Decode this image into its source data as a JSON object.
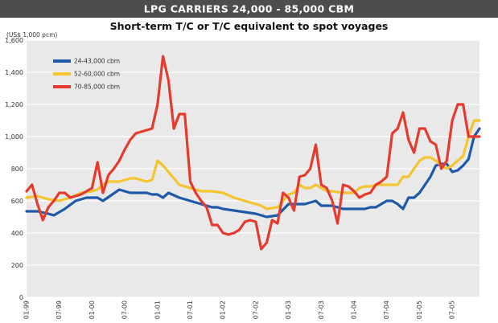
{
  "chart_data": {
    "type": "line",
    "title": "LPG CARRIERS 24,000 - 85,000 CBM",
    "subtitle": "Short-term T/C or T/C equivalent to spot voyages",
    "ylabel": "(US$ 1,000 pcm)",
    "xlabel": "",
    "ylim": [
      0,
      1600
    ],
    "yticks": [
      "0",
      "200",
      "400",
      "600",
      "800",
      "1,000",
      "1,200",
      "1,400",
      "1,600"
    ],
    "yticks_values": [
      0,
      200,
      400,
      600,
      800,
      1000,
      1200,
      1400,
      1600
    ],
    "xlim": [
      0,
      83
    ],
    "xticks": [
      "01-99",
      "07-99",
      "01-00",
      "07-00",
      "01-01",
      "07-01",
      "01-02",
      "07-02",
      "01-03",
      "07-03",
      "01-04",
      "07-04",
      "01-05",
      "07-05"
    ],
    "xticks_values": [
      0,
      6,
      12,
      18,
      24,
      30,
      36,
      42,
      48,
      54,
      60,
      66,
      72,
      78
    ],
    "grid": true,
    "legend_position": "top-left",
    "series": [
      {
        "name": "24-43,000 cbm",
        "color": "#1f5aa8",
        "x": [
          0,
          2,
          4,
          5,
          7,
          9,
          11,
          12,
          13,
          14,
          17,
          19,
          20,
          22,
          23,
          24,
          25,
          26,
          28,
          30,
          32,
          34,
          35,
          36,
          38,
          40,
          42,
          43,
          44,
          46,
          48,
          50,
          51,
          53,
          54,
          55,
          56,
          58,
          60,
          61,
          62,
          63,
          64,
          66,
          67,
          68,
          69,
          70,
          71,
          72,
          73,
          74,
          75,
          76,
          77,
          78,
          79,
          80,
          81,
          82,
          83
        ],
        "y": [
          535,
          535,
          520,
          510,
          550,
          600,
          620,
          620,
          620,
          600,
          670,
          650,
          650,
          650,
          640,
          640,
          620,
          650,
          620,
          600,
          580,
          560,
          560,
          550,
          540,
          530,
          520,
          510,
          500,
          510,
          580,
          580,
          580,
          600,
          570,
          570,
          570,
          550,
          550,
          550,
          550,
          560,
          560,
          600,
          600,
          580,
          550,
          620,
          620,
          650,
          700,
          750,
          820,
          830,
          830,
          780,
          790,
          820,
          860,
          1000,
          1050
        ]
      },
      {
        "name": "52-60,000 cbm",
        "color": "#f5c431",
        "x": [
          0,
          2,
          4,
          6,
          8,
          10,
          12,
          13,
          14,
          15,
          17,
          19,
          20,
          22,
          23,
          24,
          25,
          26,
          28,
          30,
          32,
          34,
          36,
          38,
          40,
          42,
          43,
          44,
          46,
          48,
          49,
          50,
          51,
          52,
          53,
          54,
          55,
          56,
          58,
          60,
          61,
          62,
          63,
          64,
          66,
          67,
          68,
          69,
          70,
          71,
          72,
          73,
          74,
          75,
          76,
          77,
          78,
          79,
          80,
          81,
          82,
          83
        ],
        "y": [
          620,
          630,
          610,
          600,
          620,
          650,
          660,
          670,
          700,
          720,
          720,
          740,
          740,
          720,
          730,
          850,
          820,
          780,
          700,
          680,
          660,
          660,
          650,
          620,
          600,
          580,
          570,
          550,
          560,
          640,
          650,
          700,
          680,
          680,
          700,
          680,
          660,
          660,
          650,
          650,
          680,
          690,
          690,
          700,
          700,
          700,
          700,
          750,
          750,
          800,
          850,
          870,
          870,
          850,
          820,
          800,
          820,
          850,
          880,
          1000,
          1100,
          1100
        ]
      },
      {
        "name": "70-85,000 cbm",
        "color": "#e53b2e",
        "x": [
          0,
          1,
          2,
          3,
          4,
          5,
          6,
          7,
          8,
          9,
          10,
          11,
          12,
          13,
          14,
          15,
          16,
          17,
          18,
          19,
          20,
          21,
          22,
          23,
          24,
          25,
          26,
          27,
          28,
          29,
          30,
          31,
          32,
          33,
          34,
          35,
          36,
          37,
          38,
          39,
          40,
          41,
          42,
          43,
          44,
          45,
          46,
          47,
          48,
          49,
          50,
          51,
          52,
          53,
          54,
          55,
          56,
          57,
          58,
          59,
          60,
          61,
          62,
          63,
          64,
          65,
          66,
          67,
          68,
          69,
          70,
          71,
          72,
          73,
          74,
          75,
          76,
          77,
          78,
          79,
          80,
          81,
          82,
          83
        ],
        "y": [
          660,
          700,
          580,
          480,
          560,
          600,
          650,
          650,
          620,
          630,
          640,
          660,
          680,
          840,
          650,
          760,
          800,
          850,
          920,
          980,
          1020,
          1030,
          1040,
          1050,
          1200,
          1500,
          1350,
          1050,
          1140,
          1140,
          720,
          650,
          600,
          560,
          450,
          450,
          400,
          390,
          400,
          420,
          470,
          480,
          470,
          300,
          340,
          480,
          460,
          650,
          620,
          540,
          750,
          760,
          800,
          950,
          700,
          680,
          600,
          460,
          700,
          690,
          660,
          620,
          640,
          650,
          700,
          720,
          750,
          1020,
          1050,
          1150,
          980,
          900,
          1050,
          1050,
          970,
          950,
          800,
          850,
          1100,
          1200,
          1200,
          1000,
          1000,
          1000
        ]
      }
    ]
  }
}
